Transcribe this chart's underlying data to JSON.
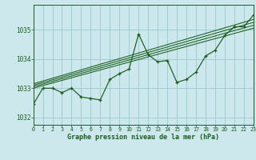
{
  "title": "Graphe pression niveau de la mer (hPa)",
  "background_color": "#cce8ec",
  "grid_color": "#9ecdd4",
  "line_color": "#1a5c1a",
  "x_min": 0,
  "x_max": 23,
  "y_min": 1031.75,
  "y_max": 1035.85,
  "yticks": [
    1032,
    1033,
    1034,
    1035
  ],
  "xticks": [
    0,
    1,
    2,
    3,
    4,
    5,
    6,
    7,
    8,
    9,
    10,
    11,
    12,
    13,
    14,
    15,
    16,
    17,
    18,
    19,
    20,
    21,
    22,
    23
  ],
  "main_series": {
    "x": [
      0,
      1,
      2,
      3,
      4,
      5,
      6,
      7,
      8,
      9,
      10,
      11,
      12,
      13,
      14,
      15,
      16,
      17,
      18,
      19,
      20,
      21,
      22,
      23
    ],
    "y": [
      1032.45,
      1033.0,
      1033.0,
      1032.85,
      1033.0,
      1032.7,
      1032.65,
      1032.6,
      1033.3,
      1033.5,
      1033.65,
      1034.85,
      1034.15,
      1033.9,
      1033.95,
      1033.2,
      1033.3,
      1033.55,
      1034.1,
      1034.3,
      1034.8,
      1035.1,
      1035.1,
      1035.5
    ]
  },
  "trend_lines": [
    {
      "x": [
        0,
        23
      ],
      "y": [
        1033.0,
        1035.05
      ]
    },
    {
      "x": [
        0,
        23
      ],
      "y": [
        1033.05,
        1035.15
      ]
    },
    {
      "x": [
        0,
        23
      ],
      "y": [
        1033.1,
        1035.25
      ]
    },
    {
      "x": [
        0,
        23
      ],
      "y": [
        1033.15,
        1035.35
      ]
    }
  ],
  "xlabel_fontsize": 6.0,
  "ytick_fontsize": 5.5,
  "xtick_fontsize": 4.8
}
